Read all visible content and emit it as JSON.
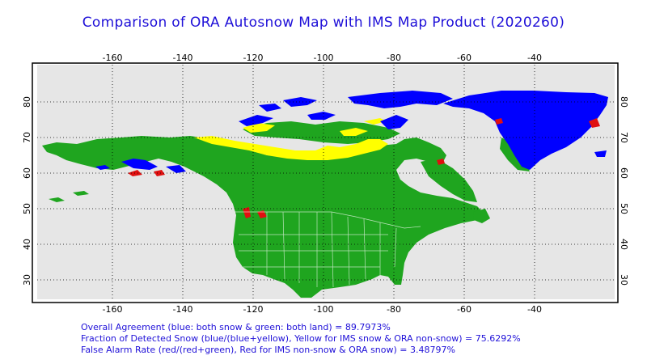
{
  "title": "Comparison of ORA Autosnow Map with IMS Map Product (2020260)",
  "map": {
    "lon_ticks": [
      "-160",
      "-140",
      "-120",
      "-100",
      "-80",
      "-60",
      "-40"
    ],
    "lat_ticks": [
      "80",
      "70",
      "60",
      "50",
      "40",
      "30"
    ],
    "colors": {
      "background": "#e6e6e6",
      "snow_both": "#0000ff",
      "land_both": "#1fa51f",
      "ims_snow_only": "#ffff00",
      "ora_snow_only": "#e01010",
      "water": "#e6e6e6",
      "border": "#000000"
    },
    "legend_meaning": {
      "blue": "both snow",
      "green": "both land",
      "yellow": "IMS snow & ORA non-snow",
      "red": "IMS non-snow & ORA snow"
    }
  },
  "stats": {
    "agreement": "Overall Agreement (blue: both snow & green: both land) =  89.7973%",
    "fraction": "Fraction of Detected Snow (blue/(blue+yellow), Yellow for IMS snow & ORA non-snow) = 75.6292%",
    "false_alarm": "False Alarm Rate (red/(red+green), Red for IMS non-snow & ORA snow)  =  3.48797%"
  }
}
